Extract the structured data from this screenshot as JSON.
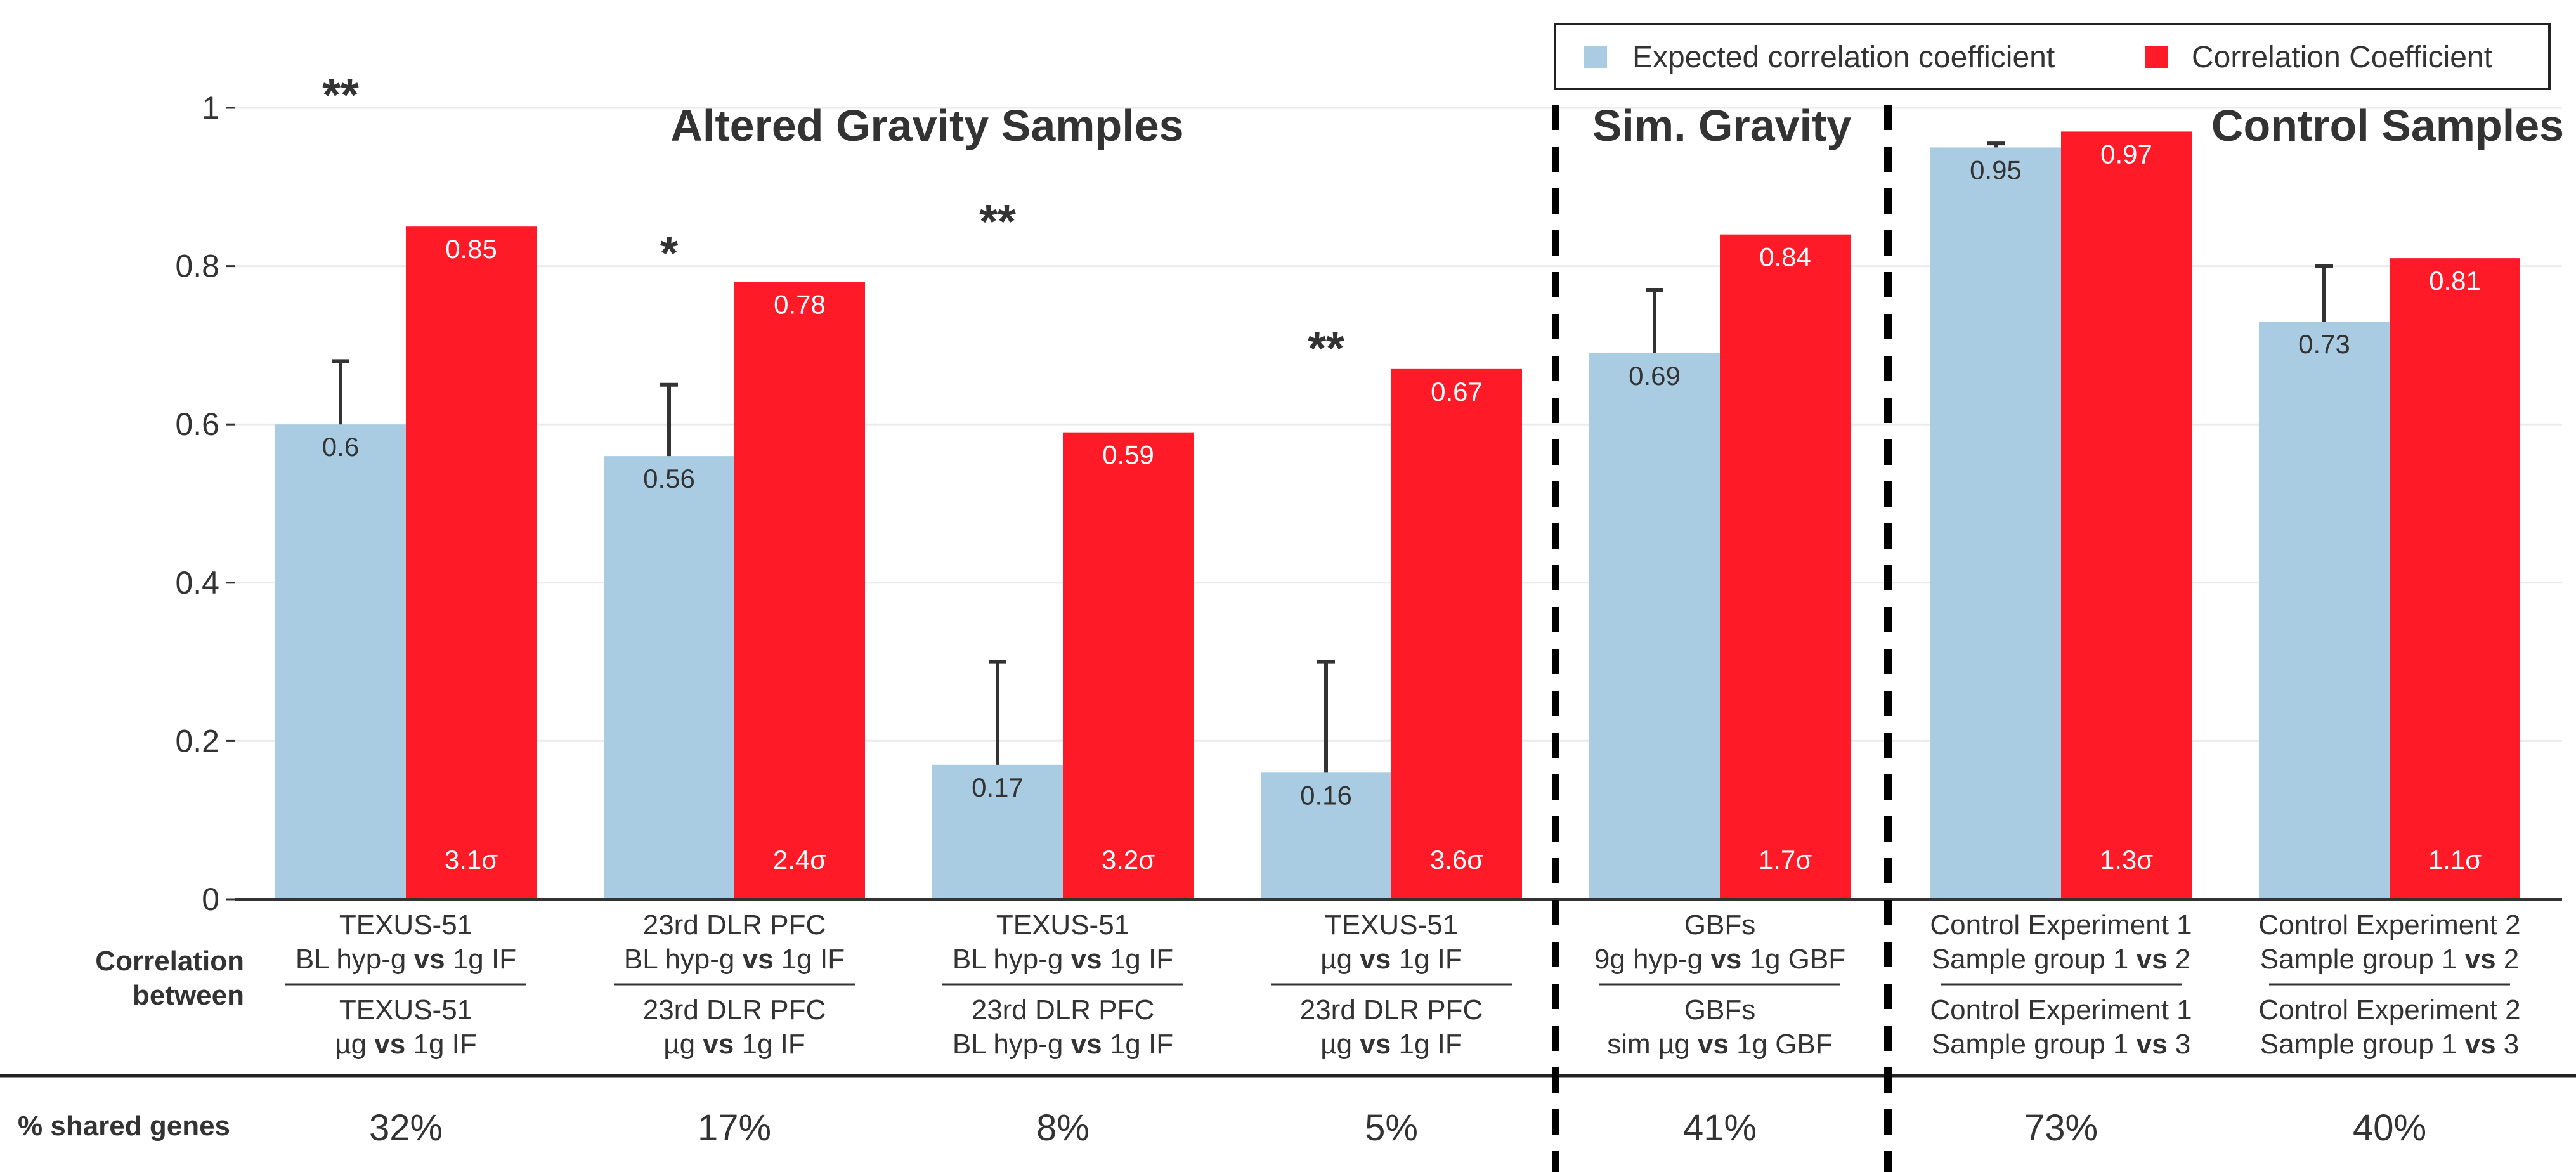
{
  "colors": {
    "expected": "#A9CCE3",
    "actual": "#FF1A27",
    "axis_text": "#333333",
    "grid": "#EBEBEB",
    "label_on_red": "#FFFFFF",
    "label_on_blue": "#333333"
  },
  "chart_data": {
    "type": "bar",
    "ylim": [
      0,
      1
    ],
    "yticks": [
      0,
      0.2,
      0.4,
      0.6,
      0.8,
      1
    ],
    "ytick_labels": [
      "0",
      "0.2",
      "0.4",
      "0.6",
      "0.8",
      "1"
    ],
    "legend": {
      "position": "top-right",
      "entries": [
        "Expected correlation coefficient",
        "Correlation Coefficient"
      ]
    },
    "section_titles": [
      "Altered Gravity Samples",
      "Sim. Gravity",
      "Control Samples"
    ],
    "row_labels": {
      "correlation_line1": "Correlation",
      "correlation_line2": "between",
      "shared_genes": "% shared genes"
    },
    "series": [
      {
        "name": "Expected correlation coefficient",
        "values": [
          0.6,
          0.56,
          0.17,
          0.16,
          0.69,
          0.95,
          0.73
        ],
        "labels": [
          "0.6",
          "0.56",
          "0.17",
          "0.16",
          "0.69",
          "0.95",
          "0.73"
        ],
        "error_upper": [
          0.68,
          0.65,
          0.3,
          0.3,
          0.77,
          0.955,
          0.8
        ]
      },
      {
        "name": "Correlation Coefficient",
        "values": [
          0.85,
          0.78,
          0.59,
          0.67,
          0.84,
          0.97,
          0.81
        ],
        "labels": [
          "0.85",
          "0.78",
          "0.59",
          "0.67",
          "0.84",
          "0.97",
          "0.81"
        ],
        "sigma": [
          "3.1σ",
          "2.4σ",
          "3.2σ",
          "3.6σ",
          "1.7σ",
          "1.3σ",
          "1.1σ"
        ]
      }
    ],
    "significance": [
      {
        "group": 0,
        "mark": "**",
        "y": 1.02
      },
      {
        "group": 1,
        "mark": "*",
        "y": 0.82
      },
      {
        "group": 2,
        "mark": "**",
        "y": 0.86
      },
      {
        "group": 3,
        "mark": "**",
        "y": 0.7
      }
    ],
    "categories": [
      {
        "top": [
          {
            "text": "TEXUS-51"
          },
          {
            "pre": "BL hyp-g ",
            "bold": "vs",
            "post": " 1g IF"
          }
        ],
        "bottom": [
          {
            "text": "TEXUS-51"
          },
          {
            "pre": "µg ",
            "bold": "vs",
            "post": " 1g IF"
          }
        ],
        "shared": "32%"
      },
      {
        "top": [
          {
            "text": "23rd DLR PFC"
          },
          {
            "pre": "BL hyp-g  ",
            "bold": "vs",
            "post": " 1g IF"
          }
        ],
        "bottom": [
          {
            "text": "23rd DLR PFC"
          },
          {
            "pre": "µg  ",
            "bold": "vs",
            "post": " 1g IF"
          }
        ],
        "shared": "17%"
      },
      {
        "top": [
          {
            "text": "TEXUS-51"
          },
          {
            "pre": "BL hyp-g ",
            "bold": "vs",
            "post": " 1g IF"
          }
        ],
        "bottom": [
          {
            "text": "23rd DLR PFC"
          },
          {
            "pre": "BL hyp-g  ",
            "bold": "vs",
            "post": " 1g IF"
          }
        ],
        "shared": "8%"
      },
      {
        "top": [
          {
            "text": "TEXUS-51"
          },
          {
            "pre": "µg ",
            "bold": "vs",
            "post": " 1g IF"
          }
        ],
        "bottom": [
          {
            "text": "23rd DLR PFC"
          },
          {
            "pre": "µg  ",
            "bold": "vs",
            "post": " 1g IF"
          }
        ],
        "shared": "5%"
      },
      {
        "top": [
          {
            "text": "GBFs"
          },
          {
            "pre": "9g hyp-g ",
            "bold": "vs",
            "post": " 1g GBF"
          }
        ],
        "bottom": [
          {
            "text": "GBFs"
          },
          {
            "pre": "sim µg ",
            "bold": "vs",
            "post": " 1g GBF"
          }
        ],
        "shared": "41%"
      },
      {
        "top": [
          {
            "text": "Control Experiment 1"
          },
          {
            "pre": "Sample group 1 ",
            "bold": "vs",
            "post": " 2"
          }
        ],
        "bottom": [
          {
            "text": "Control Experiment 1"
          },
          {
            "pre": "Sample group 1 ",
            "bold": "vs",
            "post": " 3"
          }
        ],
        "shared": "73%"
      },
      {
        "top": [
          {
            "text": "Control Experiment 2"
          },
          {
            "pre": "Sample group 1 ",
            "bold": "vs",
            "post": " 2"
          }
        ],
        "bottom": [
          {
            "text": "Control Experiment 2"
          },
          {
            "pre": "Sample group 1 ",
            "bold": "vs",
            "post": " 3"
          }
        ],
        "shared": "40%"
      }
    ]
  }
}
